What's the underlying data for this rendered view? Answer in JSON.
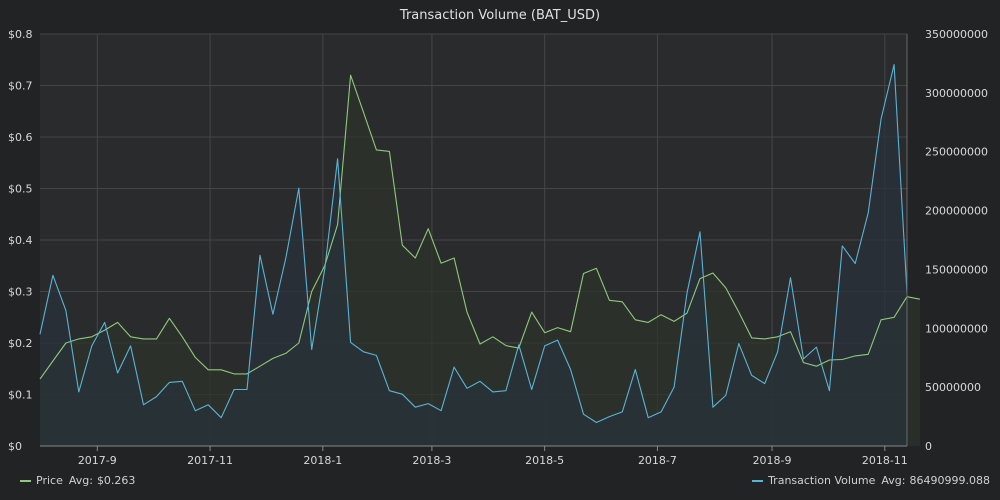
{
  "chart_data": {
    "type": "area",
    "title": "Transaction Volume (BAT_USD)",
    "x_start": "2017-08-01",
    "x_end": "2018-11-13",
    "x_ticks": [
      "2017-09-01",
      "2017-11-01",
      "2018-01-01",
      "2018-03-01",
      "2018-05-01",
      "2018-07-01",
      "2018-09-01",
      "2018-11-01"
    ],
    "x_tick_labels": [
      "2017-9",
      "2017-11",
      "2018-1",
      "2018-3",
      "2018-5",
      "2018-7",
      "2018-9",
      "2018-11"
    ],
    "y_left": {
      "min": 0,
      "max": 0.8,
      "ticks": [
        0,
        0.1,
        0.2,
        0.3,
        0.4,
        0.5,
        0.6,
        0.7,
        0.8
      ],
      "tick_labels": [
        "$0",
        "$0.1",
        "$0.2",
        "$0.3",
        "$0.4",
        "$0.5",
        "$0.6",
        "$0.7",
        "$0.8"
      ]
    },
    "y_right": {
      "min": 0,
      "max": 350000000,
      "ticks": [
        0,
        50000000,
        100000000,
        150000000,
        200000000,
        250000000,
        300000000,
        350000000
      ],
      "tick_labels": [
        "0",
        "50000000",
        "100000000",
        "150000000",
        "200000000",
        "250000000",
        "300000000",
        "350000000"
      ]
    },
    "grid": true,
    "legend_position": "bottom",
    "series": [
      {
        "name": "Price",
        "axis": "left",
        "color": "#8fc97a",
        "fill": "#2c3429",
        "avg_label": "Avg:",
        "avg_value": "$0.263",
        "points": [
          [
            "2017-08-01",
            0.13
          ],
          [
            "2017-08-08",
            0.165
          ],
          [
            "2017-08-15",
            0.2
          ],
          [
            "2017-08-22",
            0.208
          ],
          [
            "2017-08-29",
            0.212
          ],
          [
            "2017-09-05",
            0.225
          ],
          [
            "2017-09-12",
            0.24
          ],
          [
            "2017-09-19",
            0.212
          ],
          [
            "2017-09-26",
            0.208
          ],
          [
            "2017-10-03",
            0.208
          ],
          [
            "2017-10-10",
            0.248
          ],
          [
            "2017-10-17",
            0.212
          ],
          [
            "2017-10-24",
            0.172
          ],
          [
            "2017-10-31",
            0.148
          ],
          [
            "2017-11-07",
            0.148
          ],
          [
            "2017-11-14",
            0.14
          ],
          [
            "2017-11-21",
            0.14
          ],
          [
            "2017-11-28",
            0.155
          ],
          [
            "2017-12-05",
            0.17
          ],
          [
            "2017-12-12",
            0.18
          ],
          [
            "2017-12-19",
            0.2
          ],
          [
            "2017-12-26",
            0.3
          ],
          [
            "2018-01-02",
            0.35
          ],
          [
            "2018-01-09",
            0.43
          ],
          [
            "2018-01-16",
            0.72
          ],
          [
            "2018-01-23",
            0.648
          ],
          [
            "2018-01-30",
            0.575
          ],
          [
            "2018-02-06",
            0.572
          ],
          [
            "2018-02-13",
            0.39
          ],
          [
            "2018-02-20",
            0.365
          ],
          [
            "2018-02-27",
            0.422
          ],
          [
            "2018-03-06",
            0.355
          ],
          [
            "2018-03-13",
            0.365
          ],
          [
            "2018-03-20",
            0.26
          ],
          [
            "2018-03-27",
            0.198
          ],
          [
            "2018-04-03",
            0.212
          ],
          [
            "2018-04-10",
            0.195
          ],
          [
            "2018-04-17",
            0.19
          ],
          [
            "2018-04-24",
            0.26
          ],
          [
            "2018-05-01",
            0.22
          ],
          [
            "2018-05-08",
            0.23
          ],
          [
            "2018-05-15",
            0.222
          ],
          [
            "2018-05-22",
            0.335
          ],
          [
            "2018-05-29",
            0.345
          ],
          [
            "2018-06-05",
            0.283
          ],
          [
            "2018-06-12",
            0.28
          ],
          [
            "2018-06-19",
            0.245
          ],
          [
            "2018-06-26",
            0.24
          ],
          [
            "2018-07-03",
            0.255
          ],
          [
            "2018-07-10",
            0.242
          ],
          [
            "2018-07-17",
            0.258
          ],
          [
            "2018-07-24",
            0.325
          ],
          [
            "2018-07-31",
            0.336
          ],
          [
            "2018-08-07",
            0.307
          ],
          [
            "2018-08-14",
            0.26
          ],
          [
            "2018-08-21",
            0.21
          ],
          [
            "2018-08-28",
            0.208
          ],
          [
            "2018-09-04",
            0.212
          ],
          [
            "2018-09-11",
            0.222
          ],
          [
            "2018-09-18",
            0.162
          ],
          [
            "2018-09-25",
            0.155
          ],
          [
            "2018-10-02",
            0.167
          ],
          [
            "2018-10-09",
            0.168
          ],
          [
            "2018-10-16",
            0.175
          ],
          [
            "2018-10-23",
            0.178
          ],
          [
            "2018-10-30",
            0.245
          ],
          [
            "2018-11-06",
            0.25
          ],
          [
            "2018-11-13",
            0.29
          ],
          [
            "2018-11-20",
            0.285
          ]
        ]
      },
      {
        "name": "Transaction Volume",
        "axis": "right",
        "color": "#5ab4d6",
        "fill": "#28323b",
        "avg_label": "Avg:",
        "avg_value": "86490999.088",
        "points": [
          [
            "2017-08-01",
            95000000
          ],
          [
            "2017-08-08",
            145000000
          ],
          [
            "2017-08-15",
            115000000
          ],
          [
            "2017-08-22",
            46000000
          ],
          [
            "2017-08-29",
            85000000
          ],
          [
            "2017-09-05",
            105000000
          ],
          [
            "2017-09-12",
            62000000
          ],
          [
            "2017-09-19",
            85000000
          ],
          [
            "2017-09-26",
            35000000
          ],
          [
            "2017-10-03",
            42000000
          ],
          [
            "2017-10-10",
            54000000
          ],
          [
            "2017-10-17",
            55000000
          ],
          [
            "2017-10-24",
            30000000
          ],
          [
            "2017-10-31",
            35000000
          ],
          [
            "2017-11-07",
            24000000
          ],
          [
            "2017-11-14",
            48000000
          ],
          [
            "2017-11-21",
            48000000
          ],
          [
            "2017-11-28",
            162000000
          ],
          [
            "2017-12-05",
            112000000
          ],
          [
            "2017-12-12",
            160000000
          ],
          [
            "2017-12-19",
            219000000
          ],
          [
            "2017-12-26",
            82000000
          ],
          [
            "2018-01-02",
            150000000
          ],
          [
            "2018-01-09",
            244000000
          ],
          [
            "2018-01-16",
            88000000
          ],
          [
            "2018-01-23",
            80000000
          ],
          [
            "2018-01-30",
            77000000
          ],
          [
            "2018-02-06",
            47000000
          ],
          [
            "2018-02-13",
            44000000
          ],
          [
            "2018-02-20",
            33000000
          ],
          [
            "2018-02-27",
            36000000
          ],
          [
            "2018-03-06",
            30000000
          ],
          [
            "2018-03-13",
            67000000
          ],
          [
            "2018-03-20",
            49000000
          ],
          [
            "2018-03-27",
            55000000
          ],
          [
            "2018-04-03",
            46000000
          ],
          [
            "2018-04-10",
            47000000
          ],
          [
            "2018-04-17",
            86000000
          ],
          [
            "2018-04-24",
            48000000
          ],
          [
            "2018-05-01",
            85000000
          ],
          [
            "2018-05-08",
            90000000
          ],
          [
            "2018-05-15",
            65000000
          ],
          [
            "2018-05-22",
            27000000
          ],
          [
            "2018-05-29",
            20000000
          ],
          [
            "2018-06-05",
            25000000
          ],
          [
            "2018-06-12",
            29000000
          ],
          [
            "2018-06-19",
            65000000
          ],
          [
            "2018-06-26",
            24000000
          ],
          [
            "2018-07-03",
            29000000
          ],
          [
            "2018-07-10",
            50000000
          ],
          [
            "2018-07-17",
            130000000
          ],
          [
            "2018-07-24",
            182000000
          ],
          [
            "2018-07-31",
            33000000
          ],
          [
            "2018-08-07",
            43000000
          ],
          [
            "2018-08-14",
            87000000
          ],
          [
            "2018-08-21",
            60000000
          ],
          [
            "2018-08-28",
            53000000
          ],
          [
            "2018-09-04",
            80000000
          ],
          [
            "2018-09-11",
            143000000
          ],
          [
            "2018-09-18",
            74000000
          ],
          [
            "2018-09-25",
            84000000
          ],
          [
            "2018-10-02",
            47000000
          ],
          [
            "2018-10-09",
            170000000
          ],
          [
            "2018-10-16",
            155000000
          ],
          [
            "2018-10-23",
            198000000
          ],
          [
            "2018-10-30",
            278000000
          ],
          [
            "2018-11-06",
            324000000
          ],
          [
            "2018-11-13",
            130000000
          ]
        ]
      }
    ]
  }
}
